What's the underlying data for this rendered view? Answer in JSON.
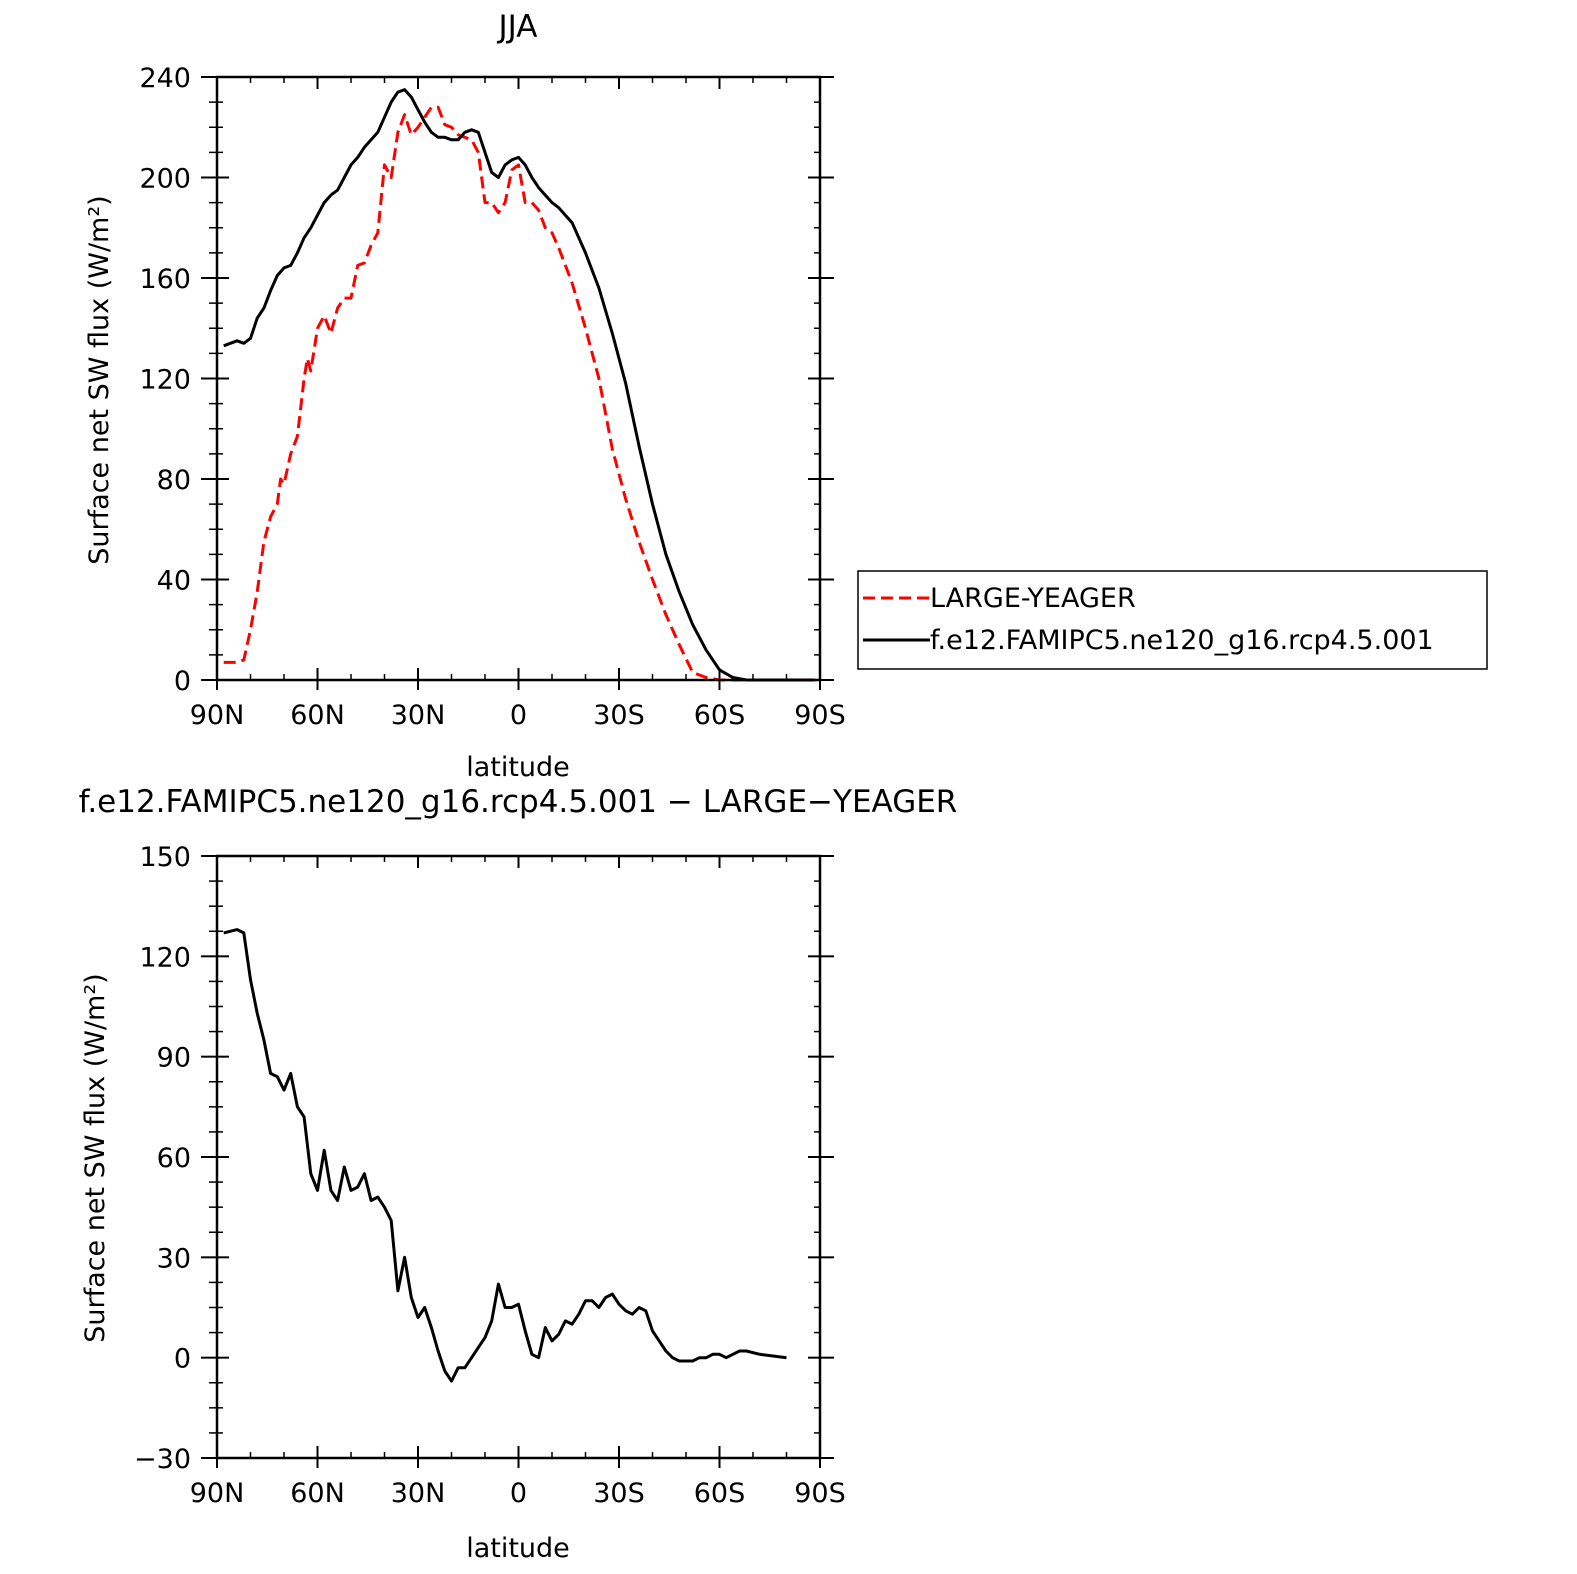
{
  "chart_data": [
    {
      "type": "line",
      "title": "JJA",
      "xlabel": "latitude",
      "ylabel": "Surface net SW flux (W/m²)",
      "xlim": [
        90,
        -90
      ],
      "ylim": [
        0,
        240
      ],
      "x_ticks": [
        90,
        60,
        30,
        0,
        -30,
        -60,
        -90
      ],
      "x_tick_labels": [
        "90N",
        "60N",
        "30N",
        "0",
        "30S",
        "60S",
        "90S"
      ],
      "y_ticks": [
        0,
        40,
        80,
        120,
        160,
        200,
        240
      ],
      "y_tick_labels": [
        "0",
        "40",
        "80",
        "120",
        "160",
        "200",
        "240"
      ],
      "legend_position": "right",
      "series": [
        {
          "name": "LARGE-YEAGER",
          "color": "#ff0000",
          "style": "dashed",
          "x": [
            88,
            84,
            82,
            80,
            78,
            76,
            74,
            72,
            71,
            70,
            68,
            66,
            64,
            63,
            62,
            60,
            58,
            56,
            54,
            52,
            50,
            48,
            46,
            44,
            42,
            40,
            38,
            36,
            34,
            32,
            30,
            28,
            26,
            24,
            22,
            20,
            18,
            16,
            14,
            12,
            10,
            8,
            6,
            4,
            2,
            0,
            -2,
            -4,
            -6,
            -8,
            -10,
            -12,
            -16,
            -20,
            -24,
            -28,
            -32,
            -36,
            -40,
            -44,
            -48,
            -52,
            -56,
            -60,
            -64,
            -68,
            -72,
            -76,
            -80,
            -84,
            -88,
            -90
          ],
          "values": [
            7,
            7,
            8,
            20,
            35,
            55,
            65,
            70,
            80,
            78,
            90,
            97,
            120,
            128,
            123,
            140,
            145,
            138,
            148,
            152,
            152,
            165,
            166,
            173,
            178,
            205,
            200,
            218,
            225,
            217,
            220,
            224,
            228,
            228,
            221,
            220,
            217,
            216,
            215,
            210,
            190,
            190,
            186,
            190,
            203,
            205,
            190,
            190,
            187,
            180,
            178,
            172,
            158,
            140,
            120,
            92,
            72,
            55,
            40,
            26,
            14,
            3,
            1,
            0,
            0,
            0,
            0,
            0,
            0,
            0,
            0,
            0
          ]
        },
        {
          "name": "f.e12.FAMIPC5.ne120_g16.rcp4.5.001",
          "color": "#000000",
          "style": "solid",
          "x": [
            88,
            84,
            82,
            80,
            78,
            76,
            74,
            72,
            70,
            68,
            66,
            64,
            62,
            60,
            58,
            56,
            54,
            52,
            50,
            48,
            46,
            44,
            42,
            40,
            38,
            36,
            34,
            32,
            30,
            28,
            26,
            24,
            22,
            20,
            18,
            16,
            14,
            12,
            10,
            8,
            6,
            4,
            2,
            0,
            -2,
            -4,
            -6,
            -8,
            -10,
            -12,
            -14,
            -16,
            -20,
            -24,
            -28,
            -32,
            -36,
            -40,
            -44,
            -48,
            -52,
            -56,
            -60,
            -64,
            -68,
            -72,
            -76,
            -80,
            -84,
            -88
          ],
          "values": [
            133,
            135,
            134,
            136,
            144,
            148,
            155,
            161,
            164,
            165,
            170,
            176,
            180,
            185,
            190,
            193,
            195,
            200,
            205,
            208,
            212,
            215,
            218,
            224,
            230,
            234,
            235,
            232,
            227,
            222,
            218,
            216,
            216,
            215,
            215,
            218,
            219,
            218,
            210,
            202,
            200,
            205,
            207,
            208,
            205,
            200,
            196,
            193,
            190,
            188,
            185,
            182,
            170,
            156,
            138,
            118,
            93,
            70,
            50,
            35,
            22,
            12,
            4,
            1,
            0,
            0,
            0,
            0,
            0,
            0
          ]
        }
      ]
    },
    {
      "type": "line",
      "title": "f.e12.FAMIPC5.ne120_g16.rcp4.5.001 − LARGE−YEAGER",
      "xlabel": "latitude",
      "ylabel": "Surface net SW flux (W/m²)",
      "xlim": [
        90,
        -90
      ],
      "ylim": [
        -30,
        150
      ],
      "x_ticks": [
        90,
        60,
        30,
        0,
        -30,
        -60,
        -90
      ],
      "x_tick_labels": [
        "90N",
        "60N",
        "30N",
        "0",
        "30S",
        "60S",
        "90S"
      ],
      "y_ticks": [
        -30,
        0,
        30,
        60,
        90,
        120,
        150
      ],
      "y_tick_labels": [
        "−30",
        "0",
        "30",
        "60",
        "90",
        "120",
        "150"
      ],
      "series": [
        {
          "name": "",
          "color": "#000000",
          "style": "solid",
          "x": [
            88,
            84,
            82,
            80,
            78,
            76,
            74,
            72,
            70,
            68,
            66,
            64,
            62,
            60,
            58,
            56,
            54,
            52,
            50,
            48,
            46,
            44,
            42,
            40,
            38,
            36,
            34,
            32,
            30,
            28,
            26,
            24,
            22,
            20,
            18,
            16,
            14,
            12,
            10,
            8,
            6,
            4,
            2,
            0,
            -2,
            -4,
            -6,
            -8,
            -10,
            -12,
            -14,
            -16,
            -18,
            -20,
            -22,
            -24,
            -26,
            -28,
            -30,
            -32,
            -34,
            -36,
            -38,
            -40,
            -42,
            -44,
            -46,
            -48,
            -50,
            -52,
            -54,
            -56,
            -58,
            -60,
            -62,
            -64,
            -66,
            -68,
            -72,
            -76,
            -80
          ],
          "values": [
            127,
            128,
            127,
            113,
            103,
            95,
            85,
            84,
            80,
            85,
            75,
            72,
            55,
            50,
            62,
            50,
            47,
            57,
            50,
            51,
            55,
            47,
            48,
            45,
            41,
            20,
            30,
            18,
            12,
            15,
            9,
            2,
            -4,
            -7,
            -3,
            -3,
            0,
            3,
            6,
            11,
            22,
            15,
            15,
            16,
            8,
            1,
            0,
            9,
            5,
            7,
            11,
            10,
            13,
            17,
            17,
            15,
            18,
            19,
            16,
            14,
            13,
            15,
            14,
            8,
            5,
            2,
            0,
            -1,
            -1,
            -1,
            0,
            0,
            1,
            1,
            0,
            1,
            2,
            2,
            1,
            0.5,
            0
          ]
        }
      ]
    }
  ]
}
